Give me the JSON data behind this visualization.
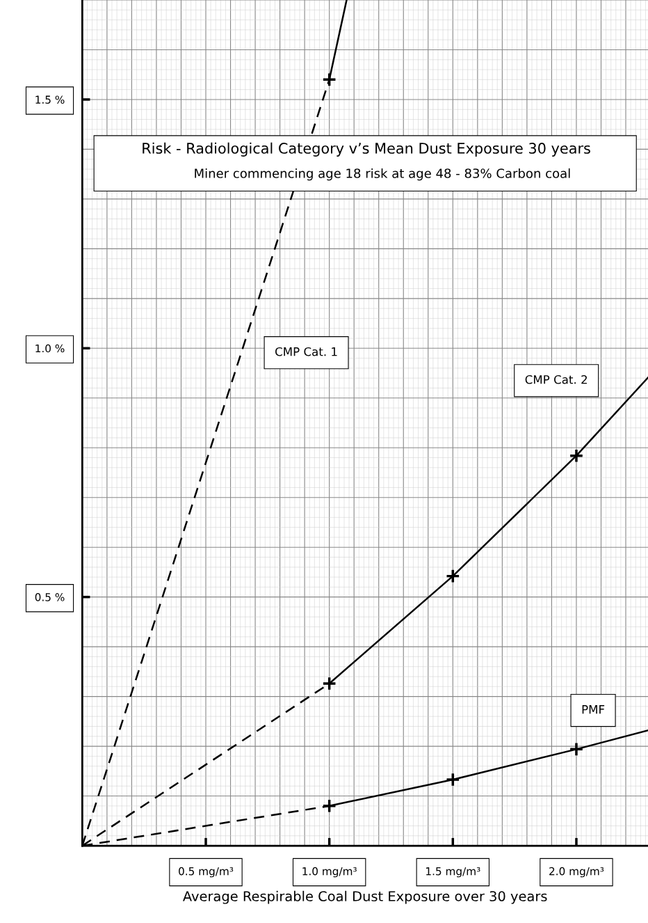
{
  "chart_data": {
    "type": "line",
    "title": "Risk - Radiological Category v’s Mean Dust Exposure 30 years",
    "subtitle": "Miner commencing age 18 risk at age 48 - 83% Carbon coal",
    "xlabel": "Average Respirable Coal Dust Exposure over 30 years",
    "xlim": [
      0,
      2.29
    ],
    "ylim": [
      0,
      1.7
    ],
    "xticks": [
      {
        "value": 0.5,
        "label": "0.5 mg/m³"
      },
      {
        "value": 1.0,
        "label": "1.0 mg/m³"
      },
      {
        "value": 1.5,
        "label": "1.5 mg/m³"
      },
      {
        "value": 2.0,
        "label": "2.0 mg/m³"
      }
    ],
    "yticks": [
      {
        "value": 0.5,
        "label": "0.5 %"
      },
      {
        "value": 1.0,
        "label": "1.0 %"
      },
      {
        "value": 1.5,
        "label": "1.5 %"
      }
    ],
    "grid": true,
    "series": [
      {
        "color": "#000000",
        "line_style": "dashed",
        "x": [
          0,
          1.0
        ],
        "values": [
          0,
          1.54
        ]
      },
      {
        "name": "CMP Cat. 1",
        "color": "#000000",
        "line_style": "solid",
        "x": [
          1.0,
          1.07
        ],
        "values": [
          1.54,
          1.7
        ]
      },
      {
        "type": "scatter",
        "color": "#000000",
        "marker": "cross",
        "x": [
          1.0
        ],
        "values": [
          1.54
        ]
      },
      {
        "color": "#000000",
        "line_style": "dashed",
        "x": [
          0,
          1.0
        ],
        "values": [
          0,
          0.326
        ]
      },
      {
        "name": "CMP Cat. 2",
        "color": "#000000",
        "line_style": "solid",
        "x": [
          1.0,
          1.5,
          2.0,
          2.29
        ],
        "values": [
          0.326,
          0.542,
          0.784,
          0.941
        ]
      },
      {
        "type": "scatter",
        "color": "#000000",
        "marker": "cross",
        "x": [
          1.0,
          1.5,
          2.0
        ],
        "values": [
          0.326,
          0.542,
          0.784
        ]
      },
      {
        "color": "#000000",
        "line_style": "dashed",
        "x": [
          0,
          1.0
        ],
        "values": [
          0,
          0.08
        ]
      },
      {
        "name": "PMF",
        "color": "#000000",
        "line_style": "solid",
        "x": [
          1.0,
          1.5,
          2.0,
          2.29
        ],
        "values": [
          0.08,
          0.133,
          0.194,
          0.232
        ]
      },
      {
        "type": "scatter",
        "color": "#000000",
        "marker": "cross",
        "x": [
          1.0,
          1.5,
          2.0
        ],
        "values": [
          0.08,
          0.133,
          0.194
        ]
      }
    ]
  }
}
